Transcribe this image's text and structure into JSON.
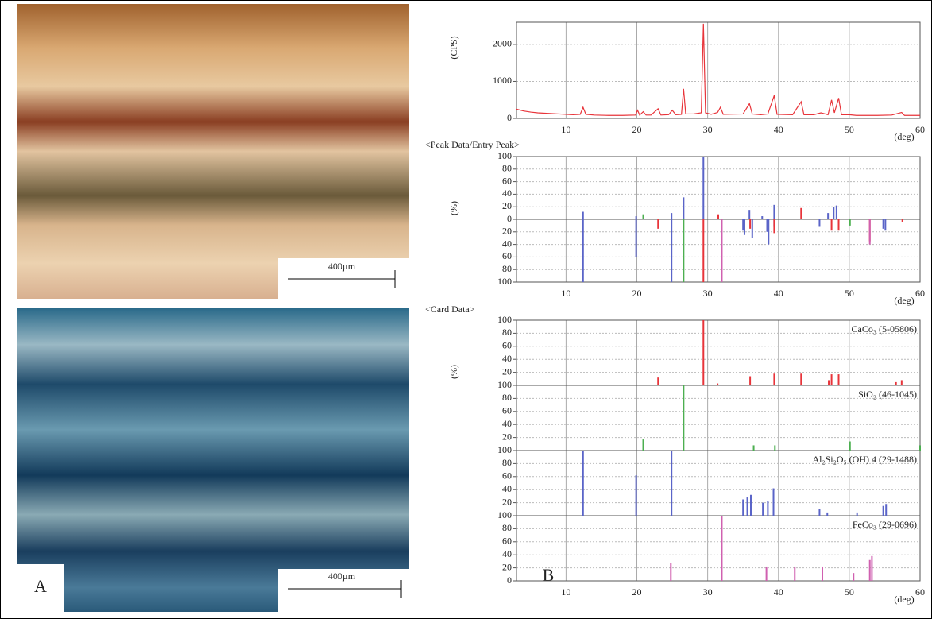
{
  "panels": {
    "a_label": "A",
    "b_label": "B",
    "scale_top": "400µm",
    "scale_bottom": "400µm"
  },
  "chart_data": [
    {
      "type": "line",
      "y_label": "(CPS)",
      "x_unit": "(deg)",
      "color": "#e8343a",
      "grid": true,
      "xlim": [
        3,
        60
      ],
      "xticks": [
        10,
        20,
        30,
        40,
        50,
        60
      ],
      "ylim": [
        0,
        2600
      ],
      "yticks": [
        0,
        1000,
        2000
      ],
      "x": [
        3,
        4,
        5,
        6,
        7,
        8,
        9,
        10,
        11,
        12,
        12.4,
        12.8,
        14,
        16,
        18,
        19.8,
        20.1,
        20.4,
        20.9,
        21.3,
        22,
        23,
        23.4,
        24.5,
        25,
        25.5,
        26.3,
        26.6,
        26.9,
        28,
        29.1,
        29.4,
        29.7,
        30.5,
        31.4,
        31.8,
        32.2,
        35,
        35.9,
        36.3,
        37.5,
        38.5,
        39.4,
        39.8,
        42,
        43.2,
        43.6,
        45,
        46,
        47,
        47.5,
        47.9,
        48.5,
        48.9,
        50,
        51,
        53,
        54,
        56,
        57.4,
        57.8,
        60
      ],
      "values": [
        250,
        200,
        170,
        150,
        140,
        130,
        120,
        110,
        100,
        110,
        300,
        110,
        90,
        80,
        80,
        90,
        220,
        90,
        180,
        90,
        90,
        260,
        90,
        100,
        220,
        100,
        110,
        800,
        120,
        120,
        150,
        2560,
        150,
        110,
        160,
        300,
        110,
        120,
        400,
        120,
        100,
        120,
        620,
        110,
        100,
        450,
        100,
        100,
        150,
        100,
        500,
        150,
        550,
        100,
        100,
        80,
        80,
        80,
        90,
        160,
        80,
        80
      ]
    },
    {
      "type": "bar",
      "title": "<Peak Data/Entry Peak>",
      "y_label": "(%)",
      "x_unit": "(deg)",
      "grid": true,
      "xlim": [
        3,
        60
      ],
      "xticks": [
        10,
        20,
        30,
        40,
        50,
        60
      ],
      "ylim": [
        -100,
        100
      ],
      "yticks": [
        100,
        80,
        60,
        40,
        20,
        0,
        {
          "value": -20,
          "label": "20"
        },
        {
          "value": -40,
          "label": "40"
        },
        {
          "value": -60,
          "label": "60"
        },
        {
          "value": -80,
          "label": "80"
        },
        {
          "value": -100,
          "label": "100"
        }
      ],
      "series": [
        {
          "color": "#5a64c8",
          "x": [
            12.4,
            12.4,
            19.9,
            19.9,
            24.9,
            24.9,
            26.6,
            29.4,
            35.0,
            35.2,
            35.9,
            36.3,
            37.7,
            38.4,
            38.6,
            39.4,
            39.4,
            45.8,
            47.0,
            47.8,
            48.2,
            54.8,
            55.1
          ],
          "values": [
            12,
            -100,
            5,
            -60,
            10,
            -100,
            35,
            100,
            -18,
            -25,
            15,
            -30,
            5,
            -20,
            -40,
            23,
            -12,
            -12,
            10,
            20,
            22,
            -15,
            -18
          ]
        },
        {
          "color": "#e8343a",
          "x": [
            23,
            29.4,
            31.5,
            36,
            39.4,
            43.2,
            47.5,
            48.5,
            52.9,
            57.5
          ],
          "values": [
            -15,
            -100,
            8,
            -15,
            -22,
            18,
            -18,
            -18,
            -35,
            -5
          ]
        },
        {
          "color": "#4caf50",
          "x": [
            20.9,
            26.6,
            50.1
          ],
          "values": [
            8,
            -100,
            -10
          ]
        },
        {
          "color": "#d060b0",
          "x": [
            32,
            52.9
          ],
          "values": [
            -100,
            -40
          ]
        }
      ]
    },
    {
      "type": "bar",
      "title": "<Card Data>",
      "y_label": "(%)",
      "x_unit": "(deg)",
      "grid": true,
      "stacked_panels": true,
      "xlim": [
        3,
        60
      ],
      "xticks": [
        10,
        20,
        30,
        40,
        50,
        60
      ],
      "ylim": [
        0,
        100
      ],
      "yticks": [
        0,
        20,
        40,
        60,
        80,
        100
      ],
      "series": [
        {
          "name": "CaCo₃ (5-05806)",
          "color": "#e8343a",
          "x": [
            23,
            29.4,
            31.4,
            36,
            39.4,
            43.2,
            47.1,
            47.5,
            48.5,
            56.6,
            57.4
          ],
          "values": [
            12,
            100,
            3,
            14,
            18,
            18,
            8,
            17,
            17,
            5,
            8
          ]
        },
        {
          "name": "SiO₂ (46-1045)",
          "color": "#4caf50",
          "x": [
            20.9,
            26.6,
            36.5,
            39.5,
            50.1,
            60
          ],
          "values": [
            17,
            100,
            8,
            8,
            14,
            8
          ]
        },
        {
          "name": "Al₂Si₂O₅ (OH) 4 (29-1488)",
          "color": "#5a64c8",
          "x": [
            12.4,
            19.9,
            24.9,
            35.0,
            35.6,
            36.1,
            37.8,
            38.5,
            39.3,
            45.8,
            46.9,
            51.1,
            54.8,
            55.2
          ],
          "values": [
            100,
            62,
            100,
            25,
            28,
            32,
            20,
            22,
            42,
            10,
            5,
            5,
            15,
            18
          ]
        },
        {
          "name": "FeCo₃ (29-0696)",
          "color": "#d060b0",
          "x": [
            24.8,
            32,
            38.3,
            42.3,
            46.2,
            50.6,
            52.9,
            53.2
          ],
          "values": [
            28,
            100,
            22,
            22,
            22,
            12,
            32,
            38
          ]
        }
      ]
    }
  ]
}
